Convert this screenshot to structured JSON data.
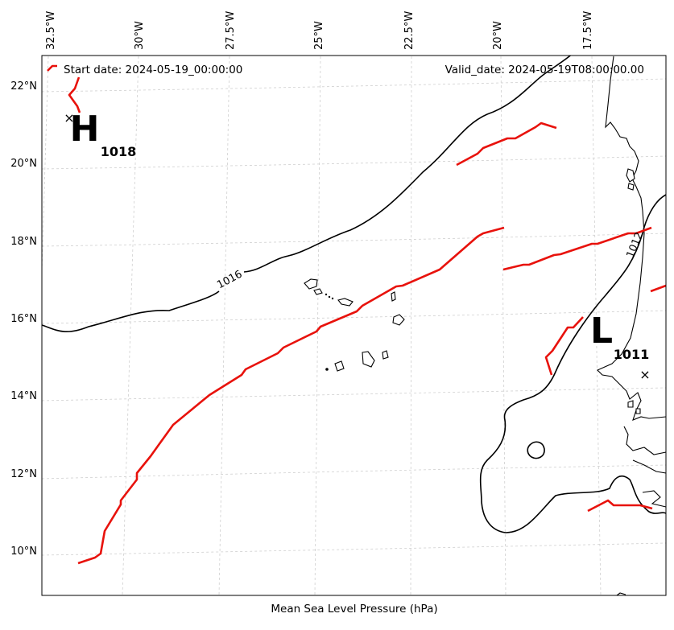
{
  "map": {
    "start_label": "Start date: 2024-05-19_00:00:00",
    "valid_label": "Valid_date: 2024-05-19T08:00:00.00",
    "x_axis_label": "Mean Sea Level Pressure (hPa)",
    "lon_ticks": [
      "32.5°W",
      "30°W",
      "27.5°W",
      "25°W",
      "22.5°W",
      "20°W",
      "17.5°W"
    ],
    "lat_ticks": [
      "22°N",
      "20°N",
      "18°N",
      "16°N",
      "14°N",
      "12°N",
      "10°N"
    ],
    "high": {
      "letter": "H",
      "value": "1018"
    },
    "low": {
      "letter": "L",
      "value": "1011"
    },
    "contour_labels": [
      "1016",
      "1012"
    ],
    "marker_symbol": "×",
    "colors": {
      "front": "#e8120c",
      "isobar": "#000000",
      "grid": "#cfcfcf"
    }
  }
}
